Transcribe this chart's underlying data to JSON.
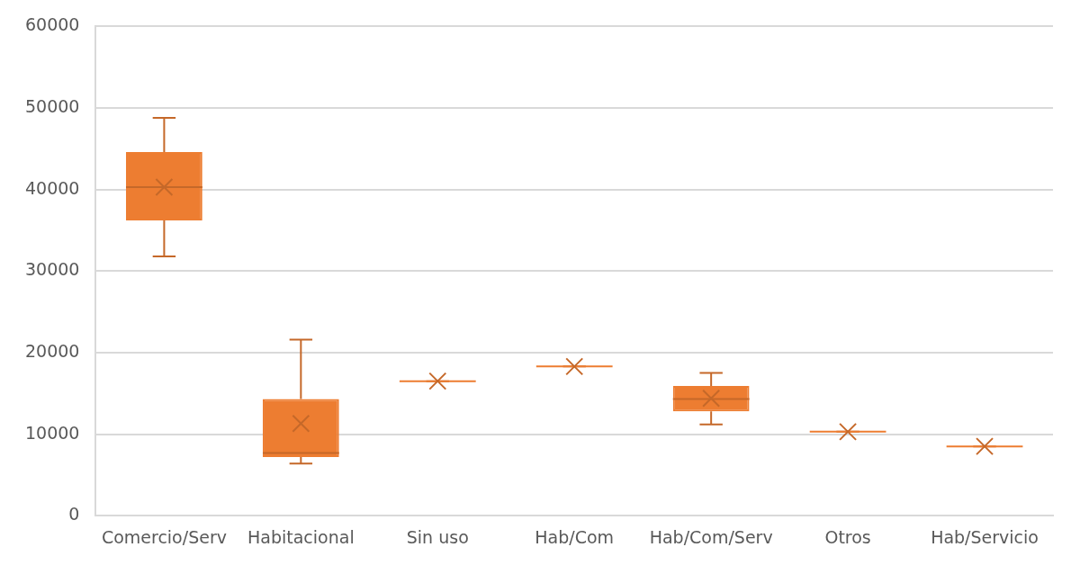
{
  "chart_data": {
    "type": "box",
    "categories": [
      "Comercio/Serv",
      "Habitacional",
      "Sin uso",
      "Hab/Com",
      "Hab/Com/Serv",
      "Otros",
      "Hab/Servicio"
    ],
    "series": [
      {
        "color": "#ed7d31",
        "boxes": [
          {
            "low": 31800,
            "q1": 36200,
            "median": 40300,
            "q3": 44600,
            "high": 48800,
            "mean": 40300
          },
          {
            "low": 6400,
            "q1": 7200,
            "median": 7700,
            "q3": 14300,
            "high": 21600,
            "mean": 11300
          },
          {
            "low": 16500,
            "q1": 16500,
            "median": 16500,
            "q3": 16500,
            "high": 16500,
            "mean": 16500
          },
          {
            "low": 18300,
            "q1": 18300,
            "median": 18300,
            "q3": 18300,
            "high": 18300,
            "mean": 18300
          },
          {
            "low": 11200,
            "q1": 12800,
            "median": 14300,
            "q3": 15900,
            "high": 17500,
            "mean": 14400
          },
          {
            "low": 10300,
            "q1": 10300,
            "median": 10300,
            "q3": 10300,
            "high": 10300,
            "mean": 10300
          },
          {
            "low": 8500,
            "q1": 8500,
            "median": 8500,
            "q3": 8500,
            "high": 8500,
            "mean": 8500
          }
        ]
      }
    ],
    "ylim": [
      0,
      60000
    ],
    "yticks": [
      0,
      10000,
      20000,
      30000,
      40000,
      50000,
      60000
    ],
    "grid": "y",
    "legend": false
  }
}
